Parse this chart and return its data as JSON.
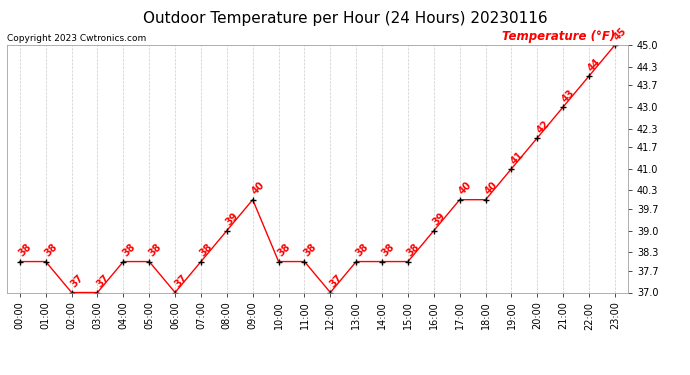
{
  "title": "Outdoor Temperature per Hour (24 Hours) 20230116",
  "copyright": "Copyright 2023 Cwtronics.com",
  "legend_label": "Temperature (°F)",
  "hours": [
    "00:00",
    "01:00",
    "02:00",
    "03:00",
    "04:00",
    "05:00",
    "06:00",
    "07:00",
    "08:00",
    "09:00",
    "10:00",
    "11:00",
    "12:00",
    "13:00",
    "14:00",
    "15:00",
    "16:00",
    "17:00",
    "18:00",
    "19:00",
    "20:00",
    "21:00",
    "22:00",
    "23:00"
  ],
  "temps": [
    38,
    38,
    37,
    37,
    38,
    38,
    37,
    38,
    39,
    40,
    38,
    38,
    37,
    38,
    38,
    38,
    39,
    40,
    40,
    41,
    42,
    43,
    44,
    45
  ],
  "ylim_min": 37.0,
  "ylim_max": 45.0,
  "yticks": [
    37.0,
    37.7,
    38.3,
    39.0,
    39.7,
    40.3,
    41.0,
    41.7,
    42.3,
    43.0,
    43.7,
    44.3,
    45.0
  ],
  "line_color": "red",
  "marker_color": "black",
  "label_color": "red",
  "title_color": "black",
  "copyright_color": "black",
  "legend_color": "red",
  "bg_color": "white",
  "grid_color": "#cccccc",
  "title_fontsize": 11,
  "copyright_fontsize": 6.5,
  "label_fontsize": 7,
  "axis_fontsize": 7,
  "legend_fontsize": 8.5
}
